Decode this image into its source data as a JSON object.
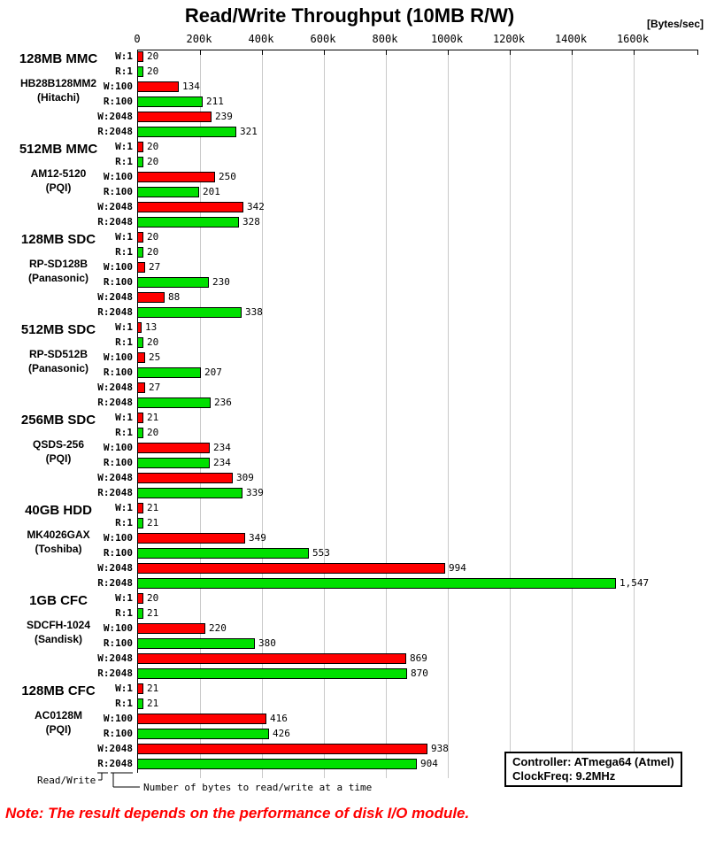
{
  "title": "Read/Write Throughput (10MB R/W)",
  "unit_label": "[Bytes/sec]",
  "note": "Note: The result depends on the performance of disk I/O module.",
  "info_box": {
    "controller": "Controller: ATmega64 (Atmel)",
    "clock": "ClockFreq: 9.2MHz"
  },
  "footnotes": {
    "read_write": "Read/Write",
    "bytes_at_a_time": "Number of bytes to read/write at a time"
  },
  "colors": {
    "write_bar": "#ff0000",
    "read_bar": "#00e000",
    "gridline": "#c9c9c9",
    "axis": "#000000",
    "note_text": "#ff0000"
  },
  "chart_data": {
    "type": "bar",
    "orientation": "horizontal",
    "title": "Read/Write Throughput (10MB R/W)",
    "unit": "Bytes/sec",
    "x_axis": {
      "tick_labels": [
        "0",
        "200k",
        "400k",
        "600k",
        "800k",
        "1000k",
        "1200k",
        "1400k",
        "1600k"
      ],
      "tick_step_k": 200,
      "xlim_k": [
        0,
        1809
      ],
      "grid": true
    },
    "bar_labels": [
      "W:1",
      "R:1",
      "W:100",
      "R:100",
      "W:2048",
      "R:2048"
    ],
    "series_colors": {
      "write": "#ff0000",
      "read": "#00e000"
    },
    "groups": [
      {
        "device": "128MB MMC",
        "model": "HB28B128MM2",
        "vendor": "(Hitachi)",
        "values_k": [
          20,
          20,
          134,
          211,
          239,
          321
        ]
      },
      {
        "device": "512MB MMC",
        "model": "AM12-5120",
        "vendor": "(PQI)",
        "values_k": [
          20,
          20,
          250,
          201,
          342,
          328
        ]
      },
      {
        "device": "128MB SDC",
        "model": "RP-SD128B",
        "vendor": "(Panasonic)",
        "values_k": [
          20,
          20,
          27,
          230,
          88,
          338
        ]
      },
      {
        "device": "512MB SDC",
        "model": "RP-SD512B",
        "vendor": "(Panasonic)",
        "values_k": [
          13,
          20,
          25,
          207,
          27,
          236
        ]
      },
      {
        "device": "256MB SDC",
        "model": "QSDS-256",
        "vendor": "(PQI)",
        "values_k": [
          21,
          20,
          234,
          234,
          309,
          339
        ]
      },
      {
        "device": "40GB HDD",
        "model": "MK4026GAX",
        "vendor": "(Toshiba)",
        "values_k": [
          21,
          21,
          349,
          553,
          994,
          1547
        ]
      },
      {
        "device": "1GB CFC",
        "model": "SDCFH-1024",
        "vendor": "(Sandisk)",
        "values_k": [
          20,
          21,
          220,
          380,
          869,
          870
        ]
      },
      {
        "device": "128MB CFC",
        "model": "AC0128M",
        "vendor": "(PQI)",
        "values_k": [
          21,
          21,
          416,
          426,
          938,
          904
        ]
      }
    ]
  }
}
